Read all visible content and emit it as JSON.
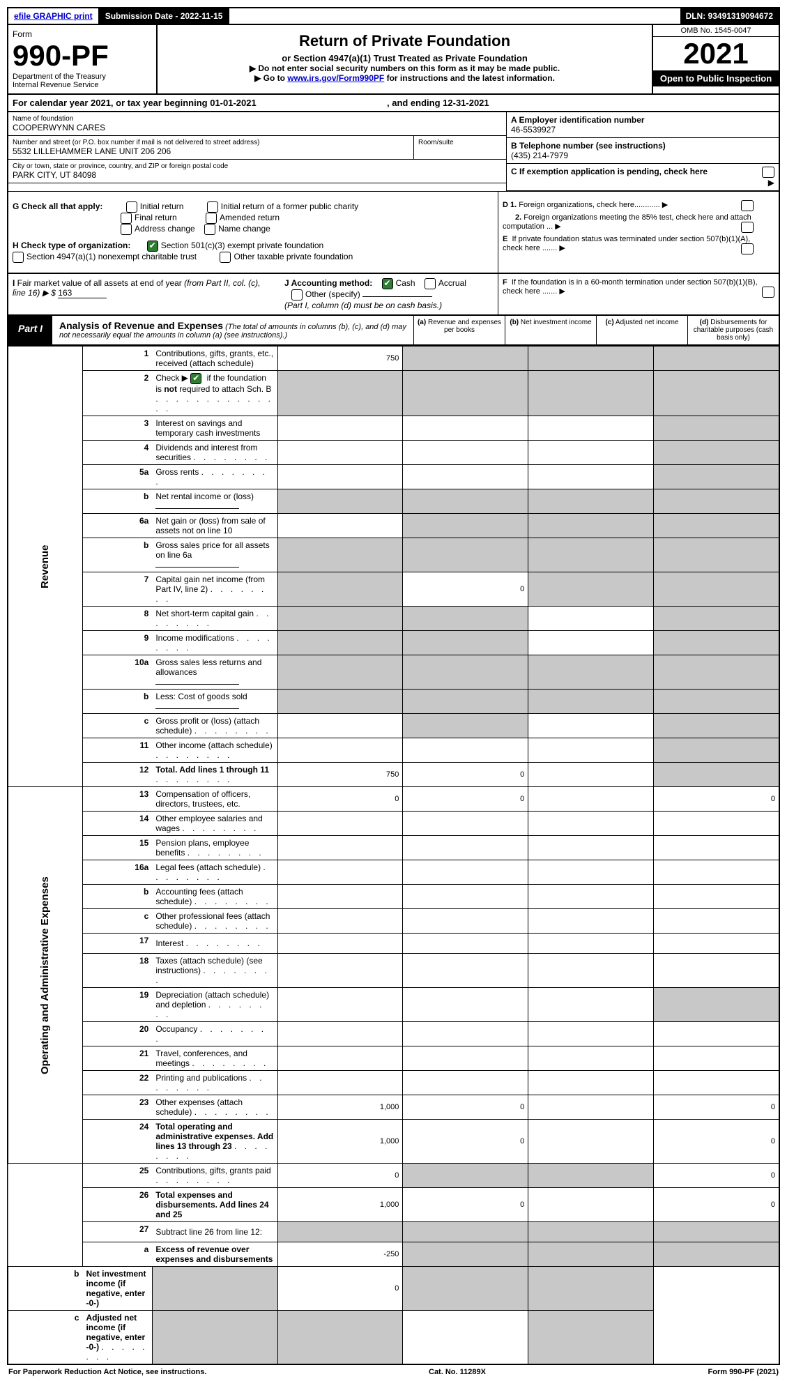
{
  "topbar": {
    "efile": "efile GRAPHIC print",
    "sub_label": "Submission Date - 2022-11-15",
    "dln": "DLN: 93491319094672"
  },
  "header": {
    "form_word": "Form",
    "form_num": "990-PF",
    "dept1": "Department of the Treasury",
    "dept2": "Internal Revenue Service",
    "title": "Return of Private Foundation",
    "subtitle": "or Section 4947(a)(1) Trust Treated as Private Foundation",
    "note1": "▶ Do not enter social security numbers on this form as it may be made public.",
    "note2_pre": "▶ Go to ",
    "note2_link": "www.irs.gov/Form990PF",
    "note2_post": " for instructions and the latest information.",
    "omb": "OMB No. 1545-0047",
    "year": "2021",
    "open": "Open to Public Inspection"
  },
  "cal_year": {
    "pre": "For calendar year 2021, or tax year beginning 01-01-2021",
    "mid": ", and ending 12-31-2021"
  },
  "info": {
    "name_label": "Name of foundation",
    "name": "COOPERWYNN CARES",
    "addr_label": "Number and street (or P.O. box number if mail is not delivered to street address)",
    "addr": "5532 LILLEHAMMER LANE UNIT 206 206",
    "room_label": "Room/suite",
    "city_label": "City or town, state or province, country, and ZIP or foreign postal code",
    "city": "PARK CITY, UT  84098",
    "a_label": "A Employer identification number",
    "a_val": "46-5539927",
    "b_label": "B Telephone number (see instructions)",
    "b_val": "(435) 214-7979",
    "c_label": "C If exemption application is pending, check here"
  },
  "g": {
    "label": "G Check all that apply:",
    "opts": [
      "Initial return",
      "Initial return of a former public charity",
      "Final return",
      "Amended return",
      "Address change",
      "Name change"
    ]
  },
  "h": {
    "label": "H Check type of organization:",
    "opt1": "Section 501(c)(3) exempt private foundation",
    "opt2": "Section 4947(a)(1) nonexempt charitable trust",
    "opt3": "Other taxable private foundation"
  },
  "d": {
    "d1": "D 1. Foreign organizations, check here............",
    "d2": "2. Foreign organizations meeting the 85% test, check here and attach computation ...",
    "e": "E  If private foundation status was terminated under section 507(b)(1)(A), check here .......",
    "f": "F  If the foundation is in a 60-month termination under section 507(b)(1)(B), check here ......."
  },
  "i": {
    "label": "I Fair market value of all assets at end of year (from Part II, col. (c),",
    "line16": "line 16) ▶ $",
    "val": "163"
  },
  "j": {
    "label": "J Accounting method:",
    "cash": "Cash",
    "accrual": "Accrual",
    "other": "Other (specify)",
    "note": "(Part I, column (d) must be on cash basis.)"
  },
  "part1": {
    "tab": "Part I",
    "title": "Analysis of Revenue and Expenses",
    "sub": " (The total of amounts in columns (b), (c), and (d) may not necessarily equal the amounts in column (a) (see instructions).)",
    "cols": [
      "(a)  Revenue and expenses per books",
      "(b)  Net investment income",
      "(c)  Adjusted net income",
      "(d)  Disbursements for charitable purposes (cash basis only)"
    ]
  },
  "side_labels": {
    "rev": "Revenue",
    "exp": "Operating and Administrative Expenses"
  },
  "rows": [
    {
      "n": "1",
      "d": "Contributions, gifts, grants, etc., received (attach schedule)",
      "a": "750",
      "shadeB": true,
      "shadeC": true,
      "shadeD": true
    },
    {
      "n": "2",
      "d": "Check ▶ ☑ if the foundation is not required to attach Sch. B",
      "dots": true,
      "shadeA": true,
      "shadeB": true,
      "shadeC": true,
      "shadeD": true,
      "checked": true,
      "bold_not": true
    },
    {
      "n": "3",
      "d": "Interest on savings and temporary cash investments",
      "shadeD": true
    },
    {
      "n": "4",
      "d": "Dividends and interest from securities",
      "dots": true,
      "shadeD": true
    },
    {
      "n": "5a",
      "d": "Gross rents",
      "dots": true,
      "shadeD": true
    },
    {
      "n": "b",
      "d": "Net rental income or (loss)",
      "shadeA": true,
      "shadeB": true,
      "shadeC": true,
      "shadeD": true,
      "inline_box": true
    },
    {
      "n": "6a",
      "d": "Net gain or (loss) from sale of assets not on line 10",
      "shadeB": true,
      "shadeC": true,
      "shadeD": true
    },
    {
      "n": "b",
      "d": "Gross sales price for all assets on line 6a",
      "shadeA": true,
      "shadeB": true,
      "shadeC": true,
      "shadeD": true,
      "inline_box": true
    },
    {
      "n": "7",
      "d": "Capital gain net income (from Part IV, line 2)",
      "dots": true,
      "shadeA": true,
      "b": "0",
      "shadeC": true,
      "shadeD": true
    },
    {
      "n": "8",
      "d": "Net short-term capital gain",
      "dots": true,
      "shadeA": true,
      "shadeB": true,
      "shadeD": true
    },
    {
      "n": "9",
      "d": "Income modifications",
      "dots": true,
      "shadeA": true,
      "shadeB": true,
      "shadeD": true
    },
    {
      "n": "10a",
      "d": "Gross sales less returns and allowances",
      "shadeA": true,
      "shadeB": true,
      "shadeC": true,
      "shadeD": true,
      "inline_box": true
    },
    {
      "n": "b",
      "d": "Less: Cost of goods sold",
      "dots": true,
      "shadeA": true,
      "shadeB": true,
      "shadeC": true,
      "shadeD": true,
      "inline_box": true
    },
    {
      "n": "c",
      "d": "Gross profit or (loss) (attach schedule)",
      "dots": true,
      "shadeB": true,
      "shadeD": true
    },
    {
      "n": "11",
      "d": "Other income (attach schedule)",
      "dots": true,
      "shadeD": true
    },
    {
      "n": "12",
      "d": "Total. Add lines 1 through 11",
      "dots": true,
      "bold": true,
      "a": "750",
      "b": "0",
      "shadeD": true
    },
    {
      "n": "13",
      "d": "Compensation of officers, directors, trustees, etc.",
      "a": "0",
      "b": "0",
      "d_": "0"
    },
    {
      "n": "14",
      "d": "Other employee salaries and wages",
      "dots": true
    },
    {
      "n": "15",
      "d": "Pension plans, employee benefits",
      "dots": true
    },
    {
      "n": "16a",
      "d": "Legal fees (attach schedule)",
      "dots": true
    },
    {
      "n": "b",
      "d": "Accounting fees (attach schedule)",
      "dots": true
    },
    {
      "n": "c",
      "d": "Other professional fees (attach schedule)",
      "dots": true
    },
    {
      "n": "17",
      "d": "Interest",
      "dots": true
    },
    {
      "n": "18",
      "d": "Taxes (attach schedule) (see instructions)",
      "dots": true
    },
    {
      "n": "19",
      "d": "Depreciation (attach schedule) and depletion",
      "dots": true,
      "shadeD": true
    },
    {
      "n": "20",
      "d": "Occupancy",
      "dots": true
    },
    {
      "n": "21",
      "d": "Travel, conferences, and meetings",
      "dots": true
    },
    {
      "n": "22",
      "d": "Printing and publications",
      "dots": true
    },
    {
      "n": "23",
      "d": "Other expenses (attach schedule)",
      "dots": true,
      "a": "1,000",
      "b": "0",
      "d_": "0"
    },
    {
      "n": "24",
      "d": "Total operating and administrative expenses. Add lines 13 through 23",
      "dots": true,
      "bold": true,
      "a": "1,000",
      "b": "0",
      "d_": "0"
    },
    {
      "n": "25",
      "d": "Contributions, gifts, grants paid",
      "dots": true,
      "a": "0",
      "shadeB": true,
      "shadeC": true,
      "d_": "0"
    },
    {
      "n": "26",
      "d": "Total expenses and disbursements. Add lines 24 and 25",
      "bold": true,
      "a": "1,000",
      "b": "0",
      "d_": "0"
    },
    {
      "n": "27",
      "d": "Subtract line 26 from line 12:",
      "shadeA": true,
      "shadeB": true,
      "shadeC": true,
      "shadeD": true
    },
    {
      "n": "a",
      "d": "Excess of revenue over expenses and disbursements",
      "bold": true,
      "a": "-250",
      "shadeB": true,
      "shadeC": true,
      "shadeD": true
    },
    {
      "n": "b",
      "d": "Net investment income (if negative, enter -0-)",
      "bold": true,
      "shadeA": true,
      "b": "0",
      "shadeC": true,
      "shadeD": true
    },
    {
      "n": "c",
      "d": "Adjusted net income (if negative, enter -0-)",
      "dots": true,
      "bold": true,
      "shadeA": true,
      "shadeB": true,
      "shadeD": true
    }
  ],
  "footer": {
    "left": "For Paperwork Reduction Act Notice, see instructions.",
    "mid": "Cat. No. 11289X",
    "right": "Form 990-PF (2021)"
  }
}
